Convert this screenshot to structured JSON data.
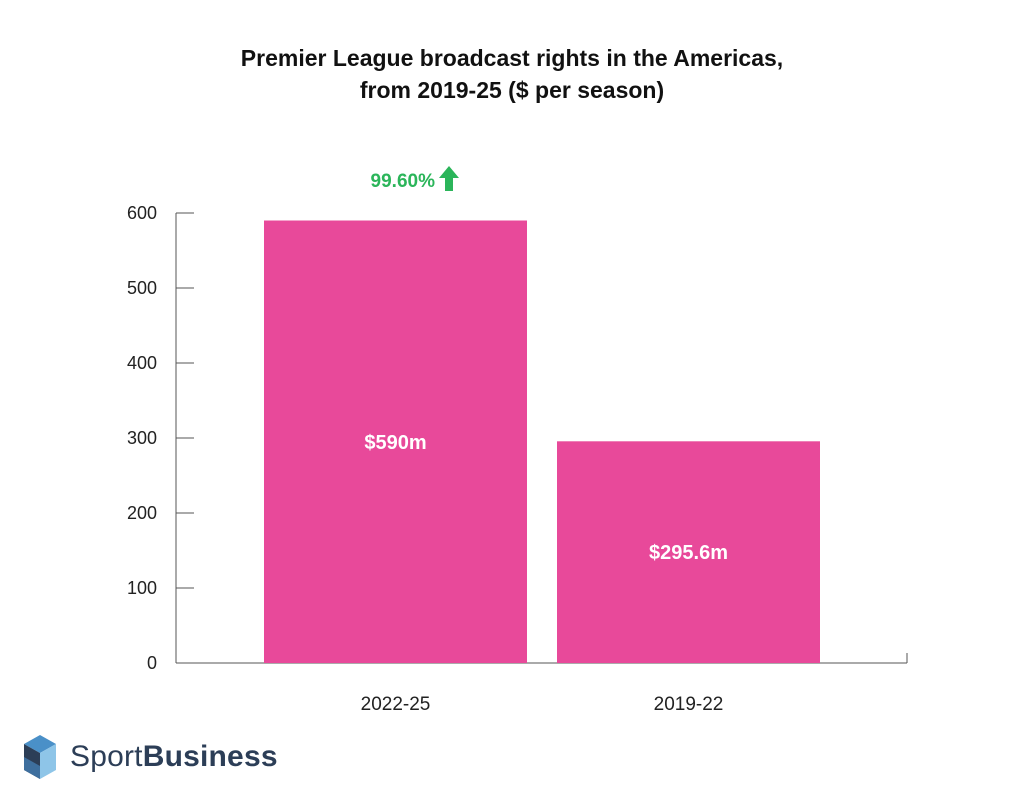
{
  "chart_data": {
    "type": "bar",
    "title_lines": [
      "Premier League broadcast rights in the Americas,",
      "from 2019-25 ($ per season)"
    ],
    "categories": [
      "2022-25",
      "2019-22"
    ],
    "values": [
      590,
      295.6
    ],
    "data_labels": [
      "$590m",
      "$295.6m"
    ],
    "yticks": [
      0,
      100,
      200,
      300,
      400,
      500,
      600
    ],
    "ylim": [
      0,
      600
    ],
    "annotation": {
      "text": "99.60%",
      "icon": "arrow-up-icon",
      "color": "#2bb55a"
    },
    "bar_color": "#e8499a",
    "grid": false
  },
  "branding": {
    "logo_part1": "Sport",
    "logo_part2": "Business",
    "logo_colors": [
      "#2c3e57",
      "#4a90c8",
      "#8ec5e8"
    ]
  }
}
